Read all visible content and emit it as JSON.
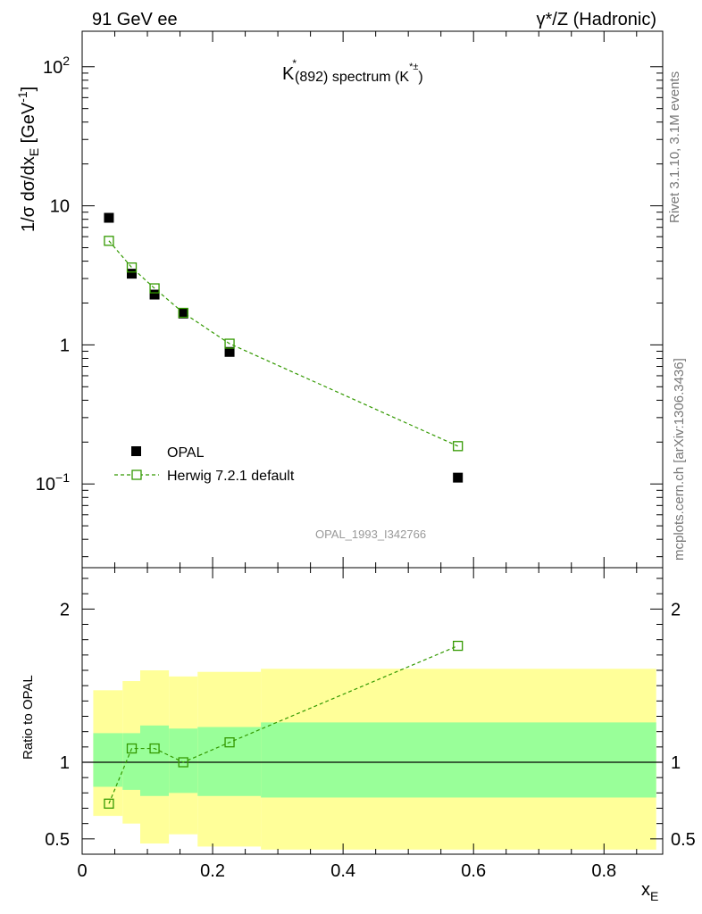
{
  "header": {
    "left": "91 GeV ee",
    "right": "γ*/Z (Hadronic)"
  },
  "plot_title": {
    "k": "K",
    "star": "*",
    "mass": "(892) spectrum (K",
    "charge": "*±",
    "close": ")"
  },
  "side": {
    "rivet": "Rivet 3.1.10,  3.1M events",
    "mcplots": "mcplots.cern.ch [arXiv:1306.3436]"
  },
  "analysis_ref": "OPAL_1993_I342766",
  "y_label_main": "1/σ dσ/dx",
  "y_label_sub": "E",
  "y_label_units": " [GeV",
  "y_label_exp": "-1",
  "y_label_close": "]",
  "y_label_ratio": "Ratio to OPAL",
  "x_label": "x",
  "x_label_sub": "E",
  "legend": {
    "data": "OPAL",
    "mc": "Herwig 7.2.1 default"
  },
  "colors": {
    "data": "#000000",
    "mc": "#339900",
    "band_inner": "#99ff99",
    "band_outer": "#ffff99"
  },
  "chart_data": [
    {
      "type": "scatter",
      "panel": "main",
      "y_scale": "log",
      "xlim": [
        0,
        0.89
      ],
      "ylim": [
        0.025,
        180
      ],
      "x_ticks": [
        "0",
        "0.2",
        "0.4",
        "0.6",
        "0.8"
      ],
      "y_ticks": [
        {
          "base": "10",
          "exp": "2"
        },
        {
          "base": "10",
          "exp": ""
        },
        {
          "base": "1",
          "exp": ""
        },
        {
          "base": "10",
          "exp": "−1"
        }
      ],
      "series": [
        {
          "name": "OPAL",
          "x": [
            0.041,
            0.076,
            0.111,
            0.155,
            0.226,
            0.576
          ],
          "y": [
            8.2,
            3.25,
            2.3,
            1.68,
            0.89,
            0.111
          ]
        },
        {
          "name": "Herwig 7.2.1 default",
          "x": [
            0.041,
            0.076,
            0.111,
            0.155,
            0.226,
            0.576
          ],
          "y": [
            5.6,
            3.6,
            2.55,
            1.7,
            1.02,
            0.187
          ]
        }
      ]
    },
    {
      "type": "line",
      "panel": "ratio",
      "xlim": [
        0,
        0.89
      ],
      "ylim": [
        0.4,
        2.27
      ],
      "x_ticks": [
        "0",
        "0.2",
        "0.4",
        "0.6",
        "0.8"
      ],
      "y_ticks": [
        "0.5",
        "1",
        "2"
      ],
      "series": [
        {
          "name": "Herwig 7.2.1 default",
          "x": [
            0.041,
            0.076,
            0.111,
            0.155,
            0.226,
            0.576
          ],
          "y": [
            0.73,
            1.09,
            1.09,
            1.0,
            1.13,
            1.76
          ]
        }
      ],
      "bands": {
        "edges": [
          0.017,
          0.062,
          0.089,
          0.133,
          0.177,
          0.274,
          0.88
        ],
        "inner_low": [
          0.84,
          0.82,
          0.78,
          0.8,
          0.78,
          0.77
        ],
        "inner_high": [
          1.19,
          1.19,
          1.24,
          1.22,
          1.23,
          1.26
        ],
        "outer_low": [
          0.65,
          0.6,
          0.47,
          0.53,
          0.45,
          0.43
        ],
        "outer_high": [
          1.47,
          1.53,
          1.6,
          1.56,
          1.59,
          1.61
        ]
      }
    }
  ]
}
